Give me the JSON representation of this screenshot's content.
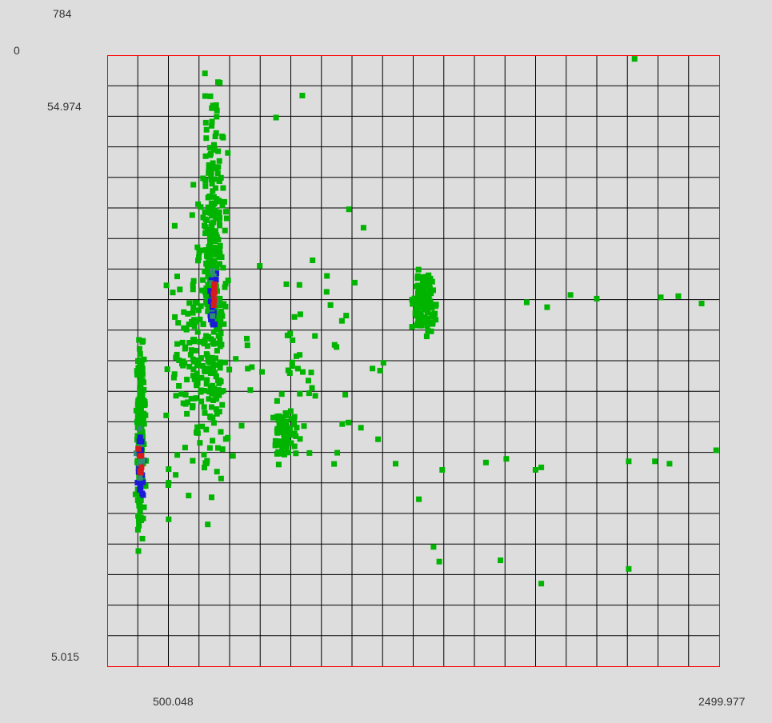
{
  "colors": {
    "background": "#dddddd",
    "frame": "#ff0000",
    "grid": "#000000",
    "point_low": "#00b400",
    "point_mid": "#2f8f6f",
    "point_dense": "#1a1ad8",
    "point_peak": "#d81a1a"
  },
  "labels": {
    "count_max": "784",
    "count_min": "0",
    "y_top": "54.974",
    "y_bottom": "5.015",
    "x_left": "500.048",
    "x_right": "2499.977"
  },
  "chart_data": {
    "type": "scatter",
    "title": "",
    "xlabel": "",
    "ylabel": "",
    "grid": true,
    "x_range_printed": [
      500.048,
      2499.977
    ],
    "y_range_printed": [
      5.015,
      54.974
    ],
    "density_scale": [
      0,
      784
    ],
    "notes_on_structure": "2D density scatter; green = low density, blue/red = high density",
    "clusters": [
      {
        "name": "",
        "x_center": 775,
        "y_center": 37,
        "x_spread": 40,
        "y_spread": 13,
        "count": 320
      },
      {
        "name": "",
        "x_center": 525,
        "y_center": 24,
        "x_spread": 15,
        "y_spread": 8,
        "count": 160
      },
      {
        "name": "",
        "x_center": 1500,
        "y_center": 35,
        "x_spread": 35,
        "y_spread": 3,
        "count": 110
      },
      {
        "name": "",
        "x_center": 1020,
        "y_center": 24,
        "x_spread": 40,
        "y_spread": 2,
        "count": 70
      },
      {
        "name": "",
        "x_center": 700,
        "y_center": 30,
        "x_spread": 90,
        "y_spread": 10,
        "count": 120
      },
      {
        "name": "",
        "x_center": 1100,
        "y_center": 30,
        "x_spread": 250,
        "y_spread": 8,
        "count": 60
      }
    ],
    "density_peaks": [
      {
        "x": 775,
        "y": 35.6,
        "level": "peak"
      },
      {
        "x": 525,
        "y": 22.0,
        "level": "peak"
      }
    ],
    "outliers": [
      [
        2220,
        54.9
      ],
      [
        1080,
        51.9
      ],
      [
        990,
        50.1
      ],
      [
        1240,
        42.6
      ],
      [
        1290,
        41.1
      ],
      [
        2000,
        35.6
      ],
      [
        2090,
        35.3
      ],
      [
        2310,
        35.4
      ],
      [
        2370,
        35.5
      ],
      [
        2450,
        34.9
      ],
      [
        2500,
        22.9
      ],
      [
        2200,
        22.0
      ],
      [
        2290,
        22.0
      ],
      [
        2340,
        21.8
      ],
      [
        1780,
        22.2
      ],
      [
        1710,
        21.9
      ],
      [
        1900,
        21.5
      ],
      [
        1900,
        12.0
      ],
      [
        1760,
        13.9
      ],
      [
        1400,
        21.8
      ],
      [
        1200,
        22.7
      ],
      [
        1340,
        23.8
      ],
      [
        1480,
        18.9
      ],
      [
        1560,
        21.3
      ],
      [
        1530,
        15.0
      ],
      [
        1550,
        13.8
      ],
      [
        2200,
        13.2
      ],
      [
        1880,
        21.3
      ],
      [
        1850,
        35.0
      ],
      [
        1920,
        34.6
      ]
    ]
  }
}
